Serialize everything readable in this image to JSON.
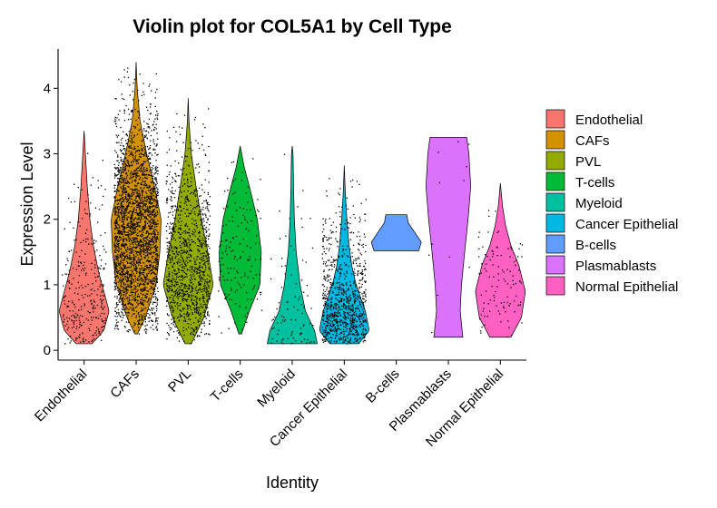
{
  "chart_data": {
    "type": "violin",
    "title": "Violin plot for COL5A1 by Cell Type",
    "xlabel": "Identity",
    "ylabel": "Expression Level",
    "ylim": [
      -0.15,
      4.6
    ],
    "yticks": [
      0,
      1,
      2,
      3,
      4
    ],
    "grid": false,
    "legend_position": "right",
    "categories": [
      "Endothelial",
      "CAFs",
      "PVL",
      "T-cells",
      "Myeloid",
      "Cancer Epithelial",
      "B-cells",
      "Plasmablasts",
      "Normal Epithelial"
    ],
    "series": [
      {
        "name": "Endothelial",
        "color": "#F8766D",
        "min": 0.1,
        "max": 3.35,
        "points": 300,
        "profile": [
          [
            0.1,
            0.3
          ],
          [
            0.3,
            0.75
          ],
          [
            0.6,
            0.95
          ],
          [
            0.9,
            0.75
          ],
          [
            1.2,
            0.55
          ],
          [
            1.6,
            0.35
          ],
          [
            2.0,
            0.22
          ],
          [
            2.5,
            0.12
          ],
          [
            3.0,
            0.05
          ],
          [
            3.35,
            0.0
          ]
        ]
      },
      {
        "name": "CAFs",
        "color": "#D39200",
        "min": 0.25,
        "max": 4.4,
        "points": 2500,
        "profile": [
          [
            0.25,
            0.05
          ],
          [
            0.5,
            0.35
          ],
          [
            1.0,
            0.75
          ],
          [
            1.5,
            0.9
          ],
          [
            2.0,
            0.95
          ],
          [
            2.5,
            0.7
          ],
          [
            3.0,
            0.4
          ],
          [
            3.5,
            0.15
          ],
          [
            4.0,
            0.04
          ],
          [
            4.4,
            0.0
          ]
        ]
      },
      {
        "name": "PVL",
        "color": "#93AA00",
        "min": 0.1,
        "max": 3.85,
        "points": 1100,
        "profile": [
          [
            0.1,
            0.12
          ],
          [
            0.5,
            0.6
          ],
          [
            1.0,
            0.95
          ],
          [
            1.5,
            0.75
          ],
          [
            2.0,
            0.5
          ],
          [
            2.5,
            0.3
          ],
          [
            3.0,
            0.12
          ],
          [
            3.5,
            0.03
          ],
          [
            3.85,
            0.0
          ]
        ]
      },
      {
        "name": "T-cells",
        "color": "#00BA38",
        "min": 0.25,
        "max": 3.12,
        "points": 150,
        "profile": [
          [
            0.25,
            0.05
          ],
          [
            0.6,
            0.35
          ],
          [
            1.0,
            0.75
          ],
          [
            1.5,
            0.8
          ],
          [
            2.0,
            0.65
          ],
          [
            2.5,
            0.35
          ],
          [
            2.8,
            0.15
          ],
          [
            3.12,
            0.0
          ]
        ]
      },
      {
        "name": "Myeloid",
        "color": "#00C19F",
        "min": 0.1,
        "max": 3.12,
        "points": 90,
        "profile": [
          [
            0.1,
            0.95
          ],
          [
            0.3,
            0.85
          ],
          [
            0.6,
            0.5
          ],
          [
            1.0,
            0.3
          ],
          [
            1.5,
            0.15
          ],
          [
            2.0,
            0.08
          ],
          [
            2.5,
            0.05
          ],
          [
            3.0,
            0.03
          ],
          [
            3.12,
            0.0
          ]
        ]
      },
      {
        "name": "Cancer Epithelial",
        "color": "#00B9E3",
        "min": 0.1,
        "max": 2.82,
        "points": 900,
        "profile": [
          [
            0.1,
            0.55
          ],
          [
            0.3,
            0.95
          ],
          [
            0.6,
            0.8
          ],
          [
            1.0,
            0.45
          ],
          [
            1.3,
            0.28
          ],
          [
            1.6,
            0.18
          ],
          [
            2.0,
            0.1
          ],
          [
            2.4,
            0.04
          ],
          [
            2.82,
            0.0
          ]
        ]
      },
      {
        "name": "B-cells",
        "color": "#619CFF",
        "min": 1.52,
        "max": 2.07,
        "points": 0,
        "profile": [
          [
            1.52,
            0.85
          ],
          [
            1.65,
            0.95
          ],
          [
            1.8,
            0.7
          ],
          [
            1.95,
            0.45
          ],
          [
            2.07,
            0.4
          ]
        ]
      },
      {
        "name": "Plasmablasts",
        "color": "#DB72FB",
        "min": 0.2,
        "max": 3.25,
        "points": 12,
        "profile": [
          [
            0.2,
            0.55
          ],
          [
            0.6,
            0.45
          ],
          [
            1.0,
            0.5
          ],
          [
            1.5,
            0.62
          ],
          [
            2.0,
            0.75
          ],
          [
            2.5,
            0.85
          ],
          [
            3.0,
            0.78
          ],
          [
            3.25,
            0.7
          ]
        ]
      },
      {
        "name": "Normal Epithelial",
        "color": "#FF61C3",
        "min": 0.2,
        "max": 2.55,
        "points": 110,
        "profile": [
          [
            0.2,
            0.4
          ],
          [
            0.5,
            0.8
          ],
          [
            0.9,
            0.95
          ],
          [
            1.3,
            0.7
          ],
          [
            1.6,
            0.4
          ],
          [
            1.9,
            0.2
          ],
          [
            2.2,
            0.08
          ],
          [
            2.55,
            0.0
          ]
        ]
      }
    ]
  }
}
